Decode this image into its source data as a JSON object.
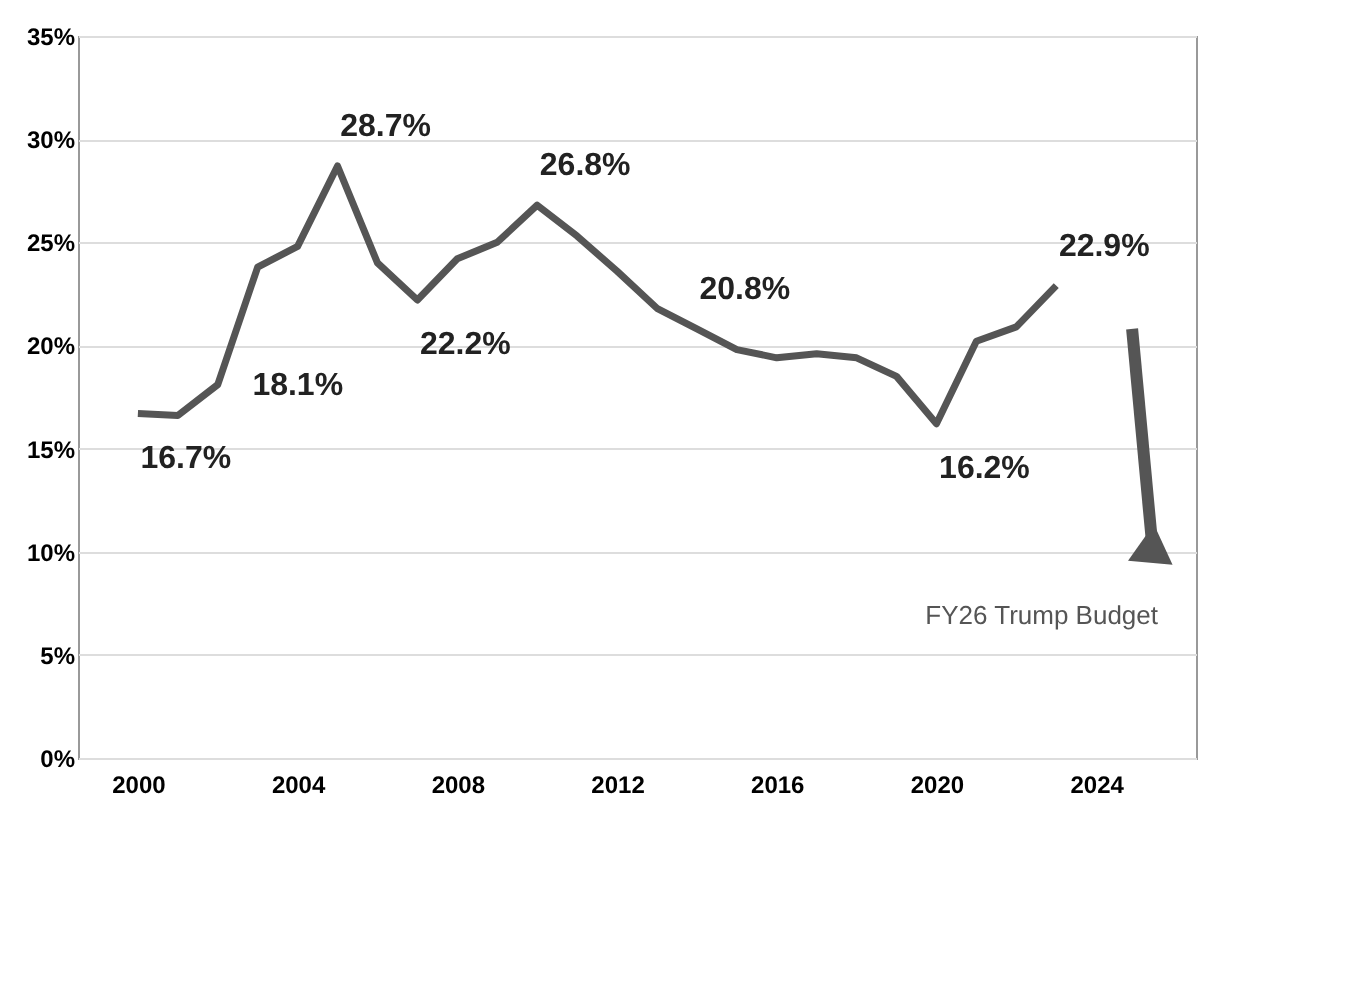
{
  "chart_data": {
    "type": "line",
    "x": [
      2000,
      2001,
      2002,
      2003,
      2004,
      2005,
      2006,
      2007,
      2008,
      2009,
      2010,
      2011,
      2012,
      2013,
      2014,
      2015,
      2016,
      2017,
      2018,
      2019,
      2020,
      2021,
      2022,
      2023
    ],
    "series": [
      {
        "color": "#555555",
        "values": [
          16.7,
          16.6,
          18.1,
          23.8,
          24.8,
          28.7,
          24.0,
          22.2,
          24.2,
          25.0,
          26.8,
          25.3,
          23.6,
          21.8,
          20.8,
          19.8,
          19.4,
          19.6,
          19.4,
          18.5,
          16.2,
          20.2,
          20.9,
          22.9
        ],
        "value_labels": [
          "16.7%",
          null,
          "18.1%",
          null,
          null,
          "28.7%",
          null,
          "22.2%",
          null,
          null,
          "26.8%",
          null,
          null,
          null,
          "20.8%",
          null,
          null,
          null,
          null,
          null,
          "16.2%",
          null,
          null,
          "22.9%"
        ]
      },
      {
        "type": "line",
        "color": "#555555",
        "marker": "triangle",
        "x": [
          2024.9,
          2025.4
        ],
        "values": [
          20.8,
          10.4
        ]
      }
    ],
    "annotations": [
      "FY26 Trump Budget"
    ],
    "xlim": [
      1998.5,
      2026.5
    ],
    "ylim": [
      0,
      35
    ],
    "xticks": [
      2000,
      2004,
      2008,
      2012,
      2016,
      2020,
      2024
    ],
    "yticks": [
      {
        "value": 0,
        "label": "0%"
      },
      {
        "value": 5,
        "label": "5%"
      },
      {
        "value": 10,
        "label": "10%"
      },
      {
        "value": 15,
        "label": "15%"
      },
      {
        "value": 20,
        "label": "20%"
      },
      {
        "value": 25,
        "label": "25%"
      },
      {
        "value": 30,
        "label": "30%"
      },
      {
        "value": 35,
        "label": "35%"
      }
    ],
    "grid": "y",
    "marker": "none",
    "line_style": "solid"
  }
}
